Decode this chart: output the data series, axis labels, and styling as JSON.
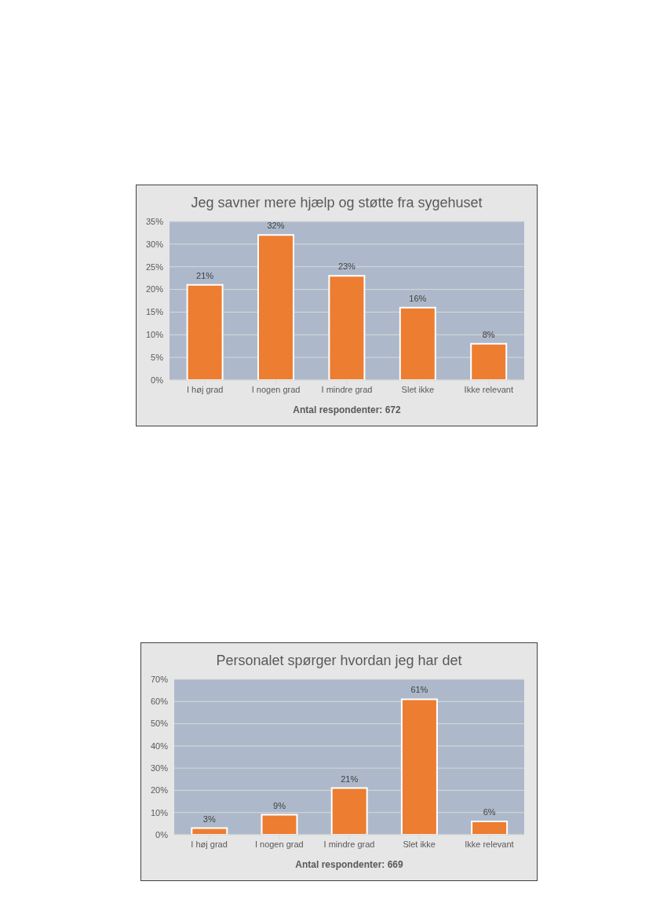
{
  "chart_data": [
    {
      "type": "bar",
      "title": "Jeg savner mere hjælp og støtte fra sygehuset",
      "xlabel": "Antal respondenter: 672",
      "categories": [
        "I høj grad",
        "I nogen grad",
        "I mindre grad",
        "Slet ikke",
        "Ikke relevant"
      ],
      "values": [
        21,
        32,
        23,
        16,
        8
      ],
      "value_labels": [
        "21%",
        "32%",
        "23%",
        "16%",
        "8%"
      ],
      "color": "#ed7d31",
      "ylim": [
        0,
        35
      ],
      "yticks": [
        {
          "value": 0,
          "label": "0%"
        },
        {
          "value": 5,
          "label": "5%"
        },
        {
          "value": 10,
          "label": "10%"
        },
        {
          "value": 15,
          "label": "15%"
        },
        {
          "value": 20,
          "label": "20%"
        },
        {
          "value": 25,
          "label": "25%"
        },
        {
          "value": 30,
          "label": "30%"
        },
        {
          "value": 35,
          "label": "35%"
        }
      ],
      "grid": "y",
      "legend": false
    },
    {
      "type": "bar",
      "title": "Personalet spørger hvordan jeg har det",
      "xlabel": "Antal respondenter: 669",
      "categories": [
        "I høj grad",
        "I nogen grad",
        "I mindre grad",
        "Slet ikke",
        "Ikke relevant"
      ],
      "values": [
        3,
        9,
        21,
        61,
        6
      ],
      "value_labels": [
        "3%",
        "9%",
        "21%",
        "61%",
        "6%"
      ],
      "color": "#ed7d31",
      "ylim": [
        0,
        70
      ],
      "yticks": [
        {
          "value": 0,
          "label": "0%"
        },
        {
          "value": 10,
          "label": "10%"
        },
        {
          "value": 20,
          "label": "20%"
        },
        {
          "value": 30,
          "label": "30%"
        },
        {
          "value": 40,
          "label": "40%"
        },
        {
          "value": 50,
          "label": "50%"
        },
        {
          "value": 60,
          "label": "60%"
        },
        {
          "value": 70,
          "label": "70%"
        }
      ],
      "grid": "y",
      "legend": false
    }
  ]
}
